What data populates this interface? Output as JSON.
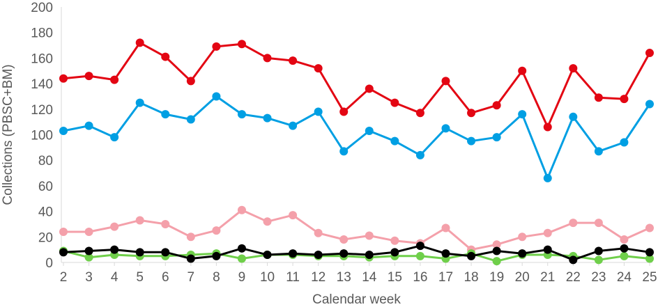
{
  "chart_data": {
    "type": "line",
    "title": "",
    "xlabel": "Calendar week",
    "ylabel": "Collections (PBSC+BM)",
    "ylim": [
      0,
      200
    ],
    "yticks": [
      0,
      20,
      40,
      60,
      80,
      100,
      120,
      140,
      160,
      180,
      200
    ],
    "grid": false,
    "legend": "none",
    "categories": [
      "2",
      "3",
      "4",
      "5",
      "6",
      "7",
      "8",
      "9",
      "10",
      "11",
      "12",
      "13",
      "14",
      "15",
      "16",
      "17",
      "18",
      "19",
      "20",
      "21",
      "22",
      "23",
      "24",
      "25"
    ],
    "series": [
      {
        "color": "#e30613",
        "values": [
          144,
          146,
          143,
          172,
          161,
          142,
          169,
          171,
          160,
          158,
          152,
          118,
          136,
          125,
          117,
          142,
          117,
          123,
          150,
          106,
          152,
          129,
          128,
          164
        ]
      },
      {
        "color": "#009fe3",
        "values": [
          103,
          107,
          98,
          125,
          116,
          112,
          130,
          116,
          113,
          107,
          118,
          87,
          103,
          95,
          84,
          105,
          95,
          98,
          116,
          66,
          114,
          87,
          94,
          124
        ]
      },
      {
        "color": "#f4a0aa",
        "values": [
          24,
          24,
          28,
          33,
          30,
          20,
          25,
          41,
          32,
          37,
          23,
          18,
          21,
          17,
          15,
          27,
          10,
          14,
          20,
          23,
          31,
          31,
          18,
          27
        ]
      },
      {
        "color": "#6fcf4a",
        "values": [
          9,
          4,
          6,
          5,
          5,
          6,
          7,
          3,
          6,
          6,
          5,
          5,
          4,
          5,
          5,
          3,
          7,
          1,
          6,
          6,
          5,
          2,
          5,
          3
        ]
      },
      {
        "color": "#000000",
        "values": [
          8,
          9,
          10,
          8,
          8,
          3,
          5,
          11,
          6,
          7,
          6,
          7,
          6,
          8,
          13,
          7,
          5,
          9,
          7,
          10,
          2,
          9,
          11,
          8
        ]
      }
    ]
  }
}
